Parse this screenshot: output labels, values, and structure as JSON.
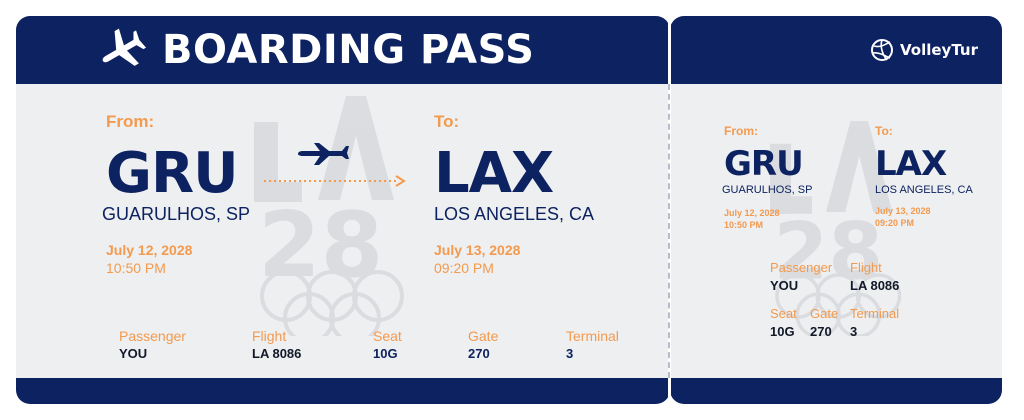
{
  "header": {
    "title": "BOARDING PASS",
    "brand": "VolleyTur",
    "icon": "airplane-icon"
  },
  "colors": {
    "navy": "#0d2260",
    "orange": "#f39a4e",
    "ticket_bg": "#eeeff1"
  },
  "watermark": {
    "text": "LA 28",
    "icon": "olympic-rings-icon"
  },
  "route": {
    "from_label": "From:",
    "to_label": "To:",
    "from_code": "GRU",
    "from_city": "GUARULHOS, SP",
    "to_code": "LAX",
    "to_city": "LOS ANGELES, CA",
    "depart_date": "July 12, 2028",
    "depart_time": "10:50 PM",
    "arrive_date": "July 13, 2028",
    "arrive_time": "09:20 PM"
  },
  "details": {
    "passenger_label": "Passenger",
    "passenger": "YOU",
    "flight_label": "Flight",
    "flight": "LA 8086",
    "seat_label": "Seat",
    "seat": "10G",
    "gate_label": "Gate",
    "gate": "270",
    "terminal_label": "Terminal",
    "terminal": "3"
  }
}
